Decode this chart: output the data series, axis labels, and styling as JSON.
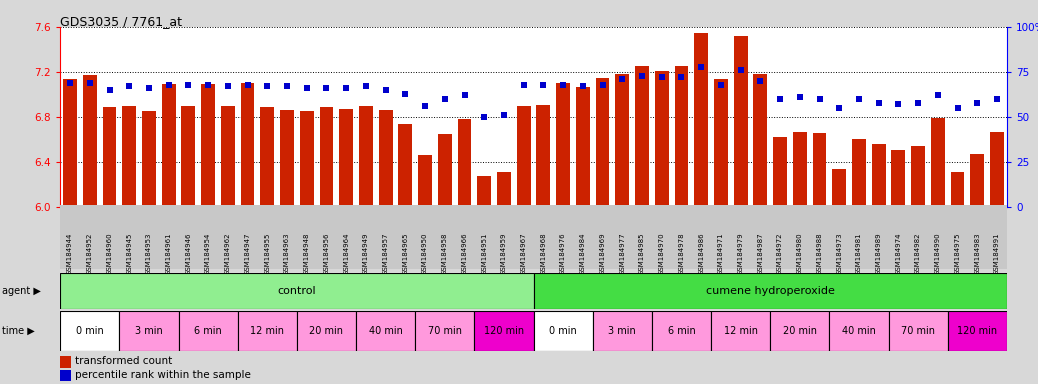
{
  "title": "GDS3035 / 7761_at",
  "samples": [
    "GSM184944",
    "GSM184952",
    "GSM184960",
    "GSM184945",
    "GSM184953",
    "GSM184961",
    "GSM184946",
    "GSM184954",
    "GSM184962",
    "GSM184947",
    "GSM184955",
    "GSM184963",
    "GSM184948",
    "GSM184956",
    "GSM184964",
    "GSM184949",
    "GSM184957",
    "GSM184965",
    "GSM184950",
    "GSM184958",
    "GSM184966",
    "GSM184951",
    "GSM184959",
    "GSM184967",
    "GSM184968",
    "GSM184976",
    "GSM184984",
    "GSM184969",
    "GSM184977",
    "GSM184985",
    "GSM184970",
    "GSM184978",
    "GSM184986",
    "GSM184971",
    "GSM184979",
    "GSM184987",
    "GSM184972",
    "GSM184980",
    "GSM184988",
    "GSM184973",
    "GSM184981",
    "GSM184989",
    "GSM184974",
    "GSM184982",
    "GSM184990",
    "GSM184975",
    "GSM184983",
    "GSM184991"
  ],
  "bar_values": [
    7.14,
    7.17,
    6.89,
    6.9,
    6.85,
    7.09,
    6.9,
    7.09,
    6.9,
    7.1,
    6.89,
    6.86,
    6.85,
    6.89,
    6.87,
    6.9,
    6.86,
    6.74,
    6.46,
    6.65,
    6.78,
    6.28,
    6.31,
    6.9,
    6.91,
    7.1,
    7.07,
    7.15,
    7.18,
    7.25,
    7.21,
    7.25,
    7.55,
    7.14,
    7.52,
    7.18,
    6.62,
    6.67,
    6.66,
    6.34,
    6.61,
    6.56,
    6.51,
    6.54,
    6.79,
    6.31,
    6.47,
    6.67
  ],
  "percentile_values": [
    69,
    69,
    65,
    67,
    66,
    68,
    68,
    68,
    67,
    68,
    67,
    67,
    66,
    66,
    66,
    67,
    65,
    63,
    56,
    60,
    62,
    50,
    51,
    68,
    68,
    68,
    67,
    68,
    71,
    73,
    72,
    72,
    78,
    68,
    76,
    70,
    60,
    61,
    60,
    55,
    60,
    58,
    57,
    58,
    62,
    55,
    58,
    60
  ],
  "ylim_left": [
    6.0,
    7.6
  ],
  "ylim_right": [
    0,
    100
  ],
  "yticks_left": [
    6.0,
    6.4,
    6.8,
    7.2,
    7.6
  ],
  "yticks_right": [
    0,
    25,
    50,
    75,
    100
  ],
  "bar_color": "#CC2200",
  "dot_color": "#0000CC",
  "bg_color": "#D8D8D8",
  "plot_bg": "#FFFFFF",
  "xlabel_bg": "#C8C8C8",
  "agent_color": "#90EE90",
  "agent_bright_color": "#44DD44",
  "time_color_white": "#FFFFFF",
  "time_color_pink": "#FF99DD",
  "time_color_magenta": "#EE00CC",
  "agent_labels": [
    "control",
    "cumene hydroperoxide"
  ],
  "time_labels": [
    "0 min",
    "3 min",
    "6 min",
    "12 min",
    "20 min",
    "40 min",
    "70 min",
    "120 min",
    "0 min",
    "3 min",
    "6 min",
    "12 min",
    "20 min",
    "40 min",
    "70 min",
    "120 min"
  ],
  "legend_bar_label": "transformed count",
  "legend_dot_label": "percentile rank within the sample"
}
